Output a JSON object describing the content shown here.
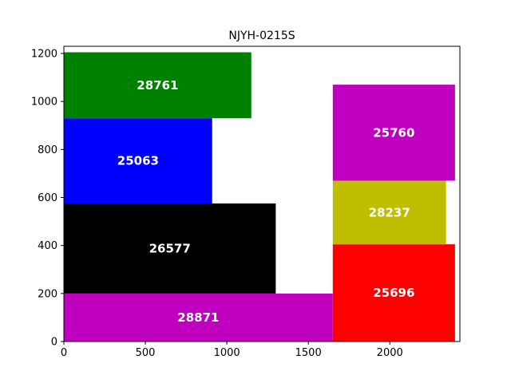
{
  "chart_data": {
    "type": "treemap",
    "title": "NJYH-0215S",
    "xlabel": "",
    "ylabel": "",
    "xlim": [
      0,
      2430
    ],
    "ylim": [
      0,
      1230
    ],
    "xticks": [
      0,
      500,
      1000,
      1500,
      2000
    ],
    "yticks": [
      0,
      200,
      400,
      600,
      800,
      1000,
      1200
    ],
    "grid": false,
    "legend": false,
    "blocks": [
      {
        "label": "28871",
        "value": 28871,
        "x0": 0,
        "x1": 1650,
        "y0": 0,
        "y1": 200,
        "color": "#bf00bf"
      },
      {
        "label": "26577",
        "value": 26577,
        "x0": 0,
        "x1": 1300,
        "y0": 200,
        "y1": 575,
        "color": "#000000"
      },
      {
        "label": "25063",
        "value": 25063,
        "x0": 0,
        "x1": 910,
        "y0": 575,
        "y1": 930,
        "color": "#0000ff"
      },
      {
        "label": "28761",
        "value": 28761,
        "x0": 0,
        "x1": 1150,
        "y0": 930,
        "y1": 1205,
        "color": "#008000"
      },
      {
        "label": "25696",
        "value": 25696,
        "x0": 1650,
        "x1": 2400,
        "y0": 0,
        "y1": 405,
        "color": "#ff0000"
      },
      {
        "label": "28237",
        "value": 28237,
        "x0": 1650,
        "x1": 2345,
        "y0": 405,
        "y1": 670,
        "color": "#bfbf00"
      },
      {
        "label": "25760",
        "value": 25760,
        "x0": 1650,
        "x1": 2400,
        "y0": 670,
        "y1": 1070,
        "color": "#bf00bf"
      }
    ]
  }
}
